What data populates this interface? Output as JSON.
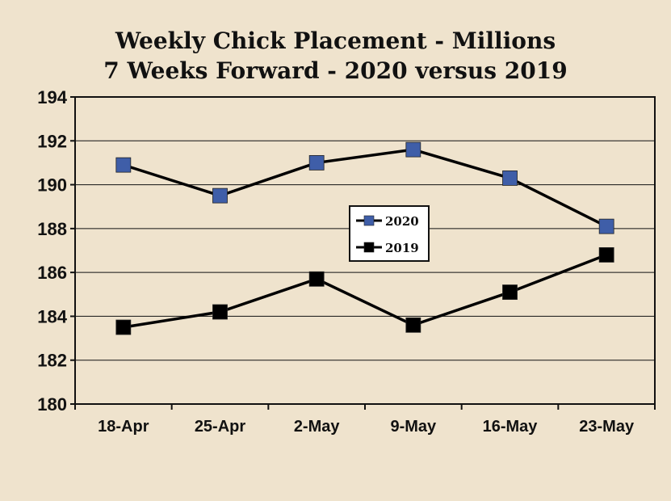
{
  "chart_data": {
    "type": "line",
    "title": "Weekly Chick Placement - Millions",
    "subtitle": "7 Weeks Forward - 2020 versus 2019",
    "categories": [
      "18-Apr",
      "25-Apr",
      "2-May",
      "9-May",
      "16-May",
      "23-May"
    ],
    "series": [
      {
        "name": "2020",
        "color": "#3f5ea8",
        "values": [
          190.9,
          189.5,
          191.0,
          191.6,
          190.3,
          188.1
        ]
      },
      {
        "name": "2019",
        "color": "#000000",
        "values": [
          183.5,
          184.2,
          185.7,
          183.6,
          185.1,
          186.8
        ]
      }
    ],
    "ylim": [
      180,
      194
    ],
    "yticks": [
      180,
      182,
      184,
      186,
      188,
      190,
      192,
      194
    ],
    "grid": true,
    "legend": "center-right"
  }
}
